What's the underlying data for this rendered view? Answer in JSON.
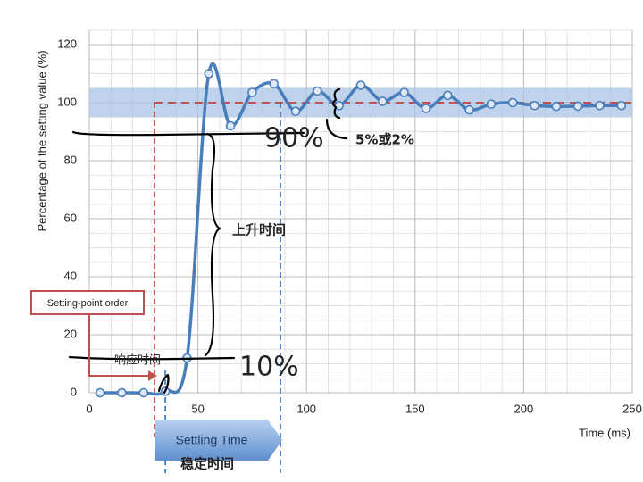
{
  "chart_data": {
    "type": "line",
    "x_label": "Time (ms)",
    "y_label": "Percentage of the setting value (%)",
    "x": [
      5,
      15,
      25,
      35,
      45,
      55,
      65,
      75,
      85,
      95,
      105,
      115,
      125,
      135,
      145,
      155,
      165,
      175,
      185,
      195,
      205,
      215,
      225,
      235,
      245
    ],
    "series": [
      {
        "color": "#4a7ebb",
        "values": [
          0,
          0,
          0,
          0.5,
          12,
          110,
          92,
          103.5,
          106.5,
          97,
          104,
          99,
          106,
          100.5,
          103.5,
          98,
          102.5,
          97.5,
          99.5,
          100,
          99,
          98.7,
          98.8,
          99,
          99
        ]
      }
    ],
    "xlim": [
      0,
      250
    ],
    "xticks": [
      0,
      50,
      100,
      150,
      200,
      250
    ],
    "ylim": [
      0,
      125
    ],
    "yticks": [
      0,
      20,
      40,
      60,
      80,
      100,
      120
    ],
    "grid": true,
    "x_minor_step": 10,
    "y_minor_step": 5,
    "tolerance_band": [
      95,
      105
    ],
    "band_color": "#a9c4e6",
    "setpoint": 100,
    "setpoint_start": 30,
    "setpoint_color": "#c0504d",
    "response_end": 35,
    "settling_end": 88,
    "annotations": {
      "setpoint_order": "Setting-point order",
      "response_time": "响应时间",
      "rise_time": "上升时间",
      "tolerance": "5%或2%",
      "upper_level": "90%",
      "lower_level": "10%",
      "settling_time": "Settling Time",
      "settling_time_cn": "稳定时间"
    }
  }
}
